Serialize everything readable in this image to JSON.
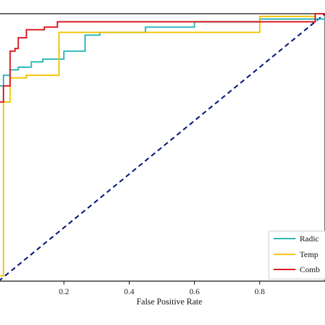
{
  "chart_data": {
    "type": "line",
    "xlabel": "False Positive Rate",
    "ylabel": "",
    "title": "",
    "xlim": [
      0.0,
      1.0
    ],
    "ylim": [
      0.0,
      1.0
    ],
    "x_ticks": [
      0.2,
      0.4,
      0.6,
      0.8
    ],
    "x_tick_labels": [
      "0.2",
      "0.4",
      "0.6",
      "0.8"
    ],
    "grid": false,
    "legend_position": "lower-right",
    "colors": {
      "radiomics": "#29b6b6",
      "temporal": "#f5c400",
      "combined": "#d9141a",
      "chance": "#0a1a7a"
    },
    "series": [
      {
        "name": "Radic",
        "color": "#29b6b6",
        "x": [
          0.0,
          0.0,
          0.015,
          0.015,
          0.035,
          0.035,
          0.06,
          0.06,
          0.1,
          0.1,
          0.135,
          0.135,
          0.2,
          0.2,
          0.265,
          0.265,
          0.31,
          0.31,
          0.45,
          0.45,
          0.6,
          0.6,
          0.8,
          0.8,
          1.0
        ],
        "y": [
          0.72,
          0.73,
          0.73,
          0.77,
          0.77,
          0.79,
          0.79,
          0.8,
          0.8,
          0.82,
          0.82,
          0.83,
          0.83,
          0.86,
          0.86,
          0.92,
          0.92,
          0.93,
          0.93,
          0.95,
          0.95,
          0.97,
          0.97,
          0.98,
          0.98
        ]
      },
      {
        "name": "Temp",
        "color": "#f5c400",
        "x": [
          0.0,
          0.015,
          0.015,
          0.035,
          0.035,
          0.085,
          0.085,
          0.185,
          0.185,
          0.8,
          0.8,
          0.97,
          0.97,
          1.0
        ],
        "y": [
          0.02,
          0.02,
          0.67,
          0.67,
          0.76,
          0.76,
          0.77,
          0.77,
          0.93,
          0.93,
          0.99,
          0.99,
          1.0,
          1.0
        ]
      },
      {
        "name": "Comb",
        "color": "#d9141a",
        "x": [
          0.0,
          0.015,
          0.015,
          0.035,
          0.035,
          0.05,
          0.05,
          0.06,
          0.06,
          0.085,
          0.085,
          0.14,
          0.14,
          0.18,
          0.18,
          0.97,
          0.97,
          1.0
        ],
        "y": [
          0.67,
          0.67,
          0.73,
          0.73,
          0.86,
          0.86,
          0.87,
          0.87,
          0.91,
          0.91,
          0.94,
          0.94,
          0.95,
          0.95,
          0.97,
          0.97,
          1.0,
          1.0
        ]
      },
      {
        "name": "",
        "color": "#0a1a7a",
        "style": "dashed",
        "x": [
          0.0,
          1.0
        ],
        "y": [
          0.0,
          1.0
        ]
      }
    ]
  }
}
